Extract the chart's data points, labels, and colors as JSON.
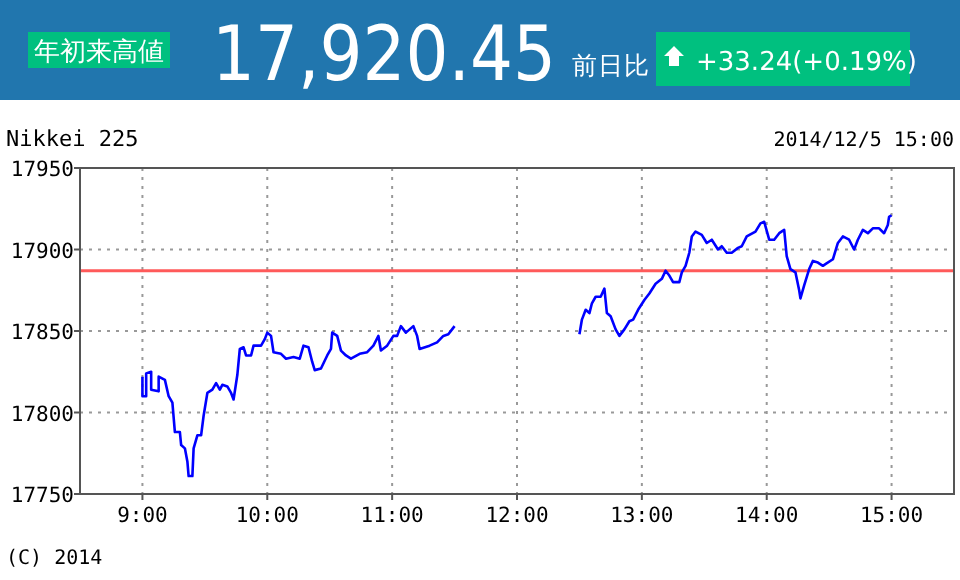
{
  "chart_data": {
    "type": "line",
    "title": "17,920.45",
    "annotations": [
      "年初来高値",
      "前日比",
      "+33.24(+0.19%)",
      "Nikkei 225",
      "2014/12/5 15:00",
      "(C) 2014"
    ],
    "xlim": [
      8.5,
      15.5
    ],
    "xticks": [
      {
        "value": 9,
        "label": "9:00"
      },
      {
        "value": 10,
        "label": "10:00"
      },
      {
        "value": 11,
        "label": "11:00"
      },
      {
        "value": 12,
        "label": "12:00"
      },
      {
        "value": 13,
        "label": "13:00"
      },
      {
        "value": 14,
        "label": "14:00"
      },
      {
        "value": 15,
        "label": "15:00"
      }
    ],
    "ylim": [
      17750,
      17950
    ],
    "yticks": [
      17750,
      17800,
      17850,
      17900,
      17950
    ],
    "grid": true,
    "marker": "none",
    "line_style": "solid",
    "ref_lines": [
      {
        "axis": "y",
        "value": 17887,
        "color": "#ff5a5a"
      }
    ],
    "series": [
      {
        "color": "#0000ff",
        "x": [
          9.0,
          9.0,
          9.03,
          9.03,
          9.07,
          9.07,
          9.13,
          9.13,
          9.18,
          9.21,
          9.24,
          9.26,
          9.3,
          9.31,
          9.34,
          9.36,
          9.37,
          9.4,
          9.41,
          9.44,
          9.47,
          9.49,
          9.52,
          9.56,
          9.59,
          9.62,
          9.64,
          9.68,
          9.71,
          9.73,
          9.76,
          9.78,
          9.81,
          9.83,
          9.87,
          9.89,
          9.95,
          9.98,
          10.0,
          10.03,
          10.05,
          10.11,
          10.15,
          10.21,
          10.26,
          10.29,
          10.33,
          10.36,
          10.38,
          10.43,
          10.48,
          10.51,
          10.52,
          10.56,
          10.59,
          10.63,
          10.67,
          10.74,
          10.8,
          10.85,
          10.89,
          10.91,
          10.96,
          11.01,
          11.04,
          11.07,
          11.11,
          11.17,
          11.2,
          11.22,
          11.3,
          11.36,
          11.41,
          11.45,
          11.48,
          11.5,
          12.0,
          12.5,
          12.52,
          12.55,
          12.58,
          12.6,
          12.63,
          12.67,
          12.7,
          12.72,
          12.75,
          12.79,
          12.82,
          12.86,
          12.9,
          12.93,
          12.97,
          13.02,
          13.06,
          13.11,
          13.16,
          13.19,
          13.22,
          13.25,
          13.3,
          13.32,
          13.35,
          13.38,
          13.4,
          13.43,
          13.48,
          13.52,
          13.56,
          13.61,
          13.64,
          13.68,
          13.72,
          13.77,
          13.8,
          13.84,
          13.91,
          13.95,
          13.98,
          14.02,
          14.06,
          14.1,
          14.14,
          14.16,
          14.19,
          14.23,
          14.26,
          14.27,
          14.3,
          14.34,
          14.37,
          14.41,
          14.45,
          14.47,
          14.53,
          14.57,
          14.61,
          14.66,
          14.7,
          14.73,
          14.77,
          14.81,
          14.85,
          14.9,
          14.94,
          14.97,
          14.98,
          15.0
        ],
        "values": [
          17822,
          17810,
          17810,
          17824,
          17825,
          17814,
          17813,
          17822,
          17820,
          17810,
          17806,
          17788,
          17788,
          17780,
          17778,
          17770,
          17761,
          17761,
          17778,
          17786,
          17786,
          17798,
          17812,
          17814,
          17818,
          17814,
          17817,
          17816,
          17812,
          17808,
          17823,
          17839,
          17840,
          17835,
          17835,
          17841,
          17841,
          17845,
          17849,
          17847,
          17837,
          17836,
          17833,
          17834,
          17833,
          17841,
          17840,
          17831,
          17826,
          17827,
          17835,
          17839,
          17849,
          17847,
          17838,
          17835,
          17833,
          17836,
          17837,
          17841,
          17847,
          17838,
          17841,
          17847,
          17847,
          17853,
          17849,
          17853,
          17847,
          17839,
          17841,
          17843,
          17847,
          17848,
          17851,
          17853,
          null,
          17848,
          17857,
          17863,
          17861,
          17867,
          17871,
          17871,
          17876,
          17861,
          17859,
          17851,
          17847,
          17851,
          17856,
          17857,
          17863,
          17869,
          17873,
          17879,
          17882,
          17887,
          17884,
          17880,
          17880,
          17886,
          17890,
          17898,
          17908,
          17911,
          17909,
          17904,
          17906,
          17900,
          17902,
          17898,
          17898,
          17901,
          17902,
          17908,
          17911,
          17916,
          17917,
          17906,
          17906,
          17910,
          17912,
          17896,
          17888,
          17886,
          17875,
          17870,
          17878,
          17888,
          17893,
          17892,
          17890,
          17891,
          17894,
          17904,
          17908,
          17906,
          17900,
          17906,
          17912,
          17910,
          17913,
          17913,
          17910,
          17915,
          17920,
          17921
        ]
      }
    ]
  }
}
